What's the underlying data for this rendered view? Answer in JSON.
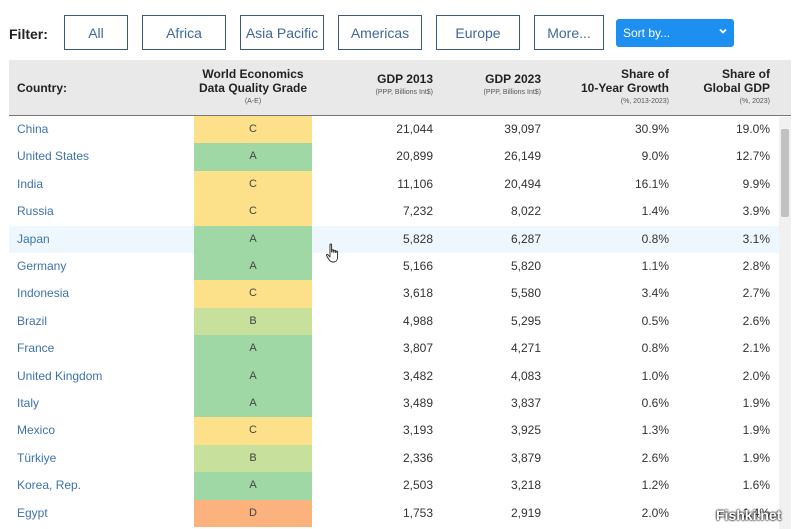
{
  "filter": {
    "label": "Filter:",
    "buttons": [
      "All",
      "Africa",
      "Asia Pacific",
      "Americas",
      "Europe",
      "More..."
    ],
    "sort_label": "Sort by..."
  },
  "table": {
    "headers": {
      "country": "Country:",
      "grade": "World Economics\nData Quality Grade",
      "grade_sub": "(A-E)",
      "gdp2013": "GDP 2013",
      "gdp2013_sub": "(PPP, Billions Int$)",
      "gdp2023": "GDP 2023",
      "gdp2023_sub": "(PPP, Billions Int$)",
      "growth": "Share of\n10-Year Growth",
      "growth_sub": "(%, 2013-2023)",
      "share": "Share of\nGlobal GDP",
      "share_sub": "(%, 2023)"
    },
    "grade_colors": {
      "A": "#9fd8a4",
      "B": "#c7e19c",
      "C": "#fde18a",
      "D": "#fbb27d"
    },
    "rows": [
      {
        "country": "China",
        "grade": "C",
        "gdp2013": "21,044",
        "gdp2023": "39,097",
        "growth": "30.9%",
        "share": "19.0%"
      },
      {
        "country": "United States",
        "grade": "A",
        "gdp2013": "20,899",
        "gdp2023": "26,149",
        "growth": "9.0%",
        "share": "12.7%"
      },
      {
        "country": "India",
        "grade": "C",
        "gdp2013": "11,106",
        "gdp2023": "20,494",
        "growth": "16.1%",
        "share": "9.9%"
      },
      {
        "country": "Russia",
        "grade": "C",
        "gdp2013": "7,232",
        "gdp2023": "8,022",
        "growth": "1.4%",
        "share": "3.9%"
      },
      {
        "country": "Japan",
        "grade": "A",
        "gdp2013": "5,828",
        "gdp2023": "6,287",
        "growth": "0.8%",
        "share": "3.1%"
      },
      {
        "country": "Germany",
        "grade": "A",
        "gdp2013": "5,166",
        "gdp2023": "5,820",
        "growth": "1.1%",
        "share": "2.8%"
      },
      {
        "country": "Indonesia",
        "grade": "C",
        "gdp2013": "3,618",
        "gdp2023": "5,580",
        "growth": "3.4%",
        "share": "2.7%"
      },
      {
        "country": "Brazil",
        "grade": "B",
        "gdp2013": "4,988",
        "gdp2023": "5,295",
        "growth": "0.5%",
        "share": "2.6%"
      },
      {
        "country": "France",
        "grade": "A",
        "gdp2013": "3,807",
        "gdp2023": "4,271",
        "growth": "0.8%",
        "share": "2.1%"
      },
      {
        "country": "United Kingdom",
        "grade": "A",
        "gdp2013": "3,482",
        "gdp2023": "4,083",
        "growth": "1.0%",
        "share": "2.0%"
      },
      {
        "country": "Italy",
        "grade": "A",
        "gdp2013": "3,489",
        "gdp2023": "3,837",
        "growth": "0.6%",
        "share": "1.9%"
      },
      {
        "country": "Mexico",
        "grade": "C",
        "gdp2013": "3,193",
        "gdp2023": "3,925",
        "growth": "1.3%",
        "share": "1.9%"
      },
      {
        "country": "Türkiye",
        "grade": "B",
        "gdp2013": "2,336",
        "gdp2023": "3,879",
        "growth": "2.6%",
        "share": "1.9%"
      },
      {
        "country": "Korea, Rep.",
        "grade": "A",
        "gdp2013": "2,503",
        "gdp2023": "3,218",
        "growth": "1.2%",
        "share": "1.6%"
      },
      {
        "country": "Egypt",
        "grade": "D",
        "gdp2013": "1,753",
        "gdp2023": "2,919",
        "growth": "2.0%",
        "share": "1.4%"
      }
    ],
    "hover_row": 4
  },
  "watermark": "Fishki.net"
}
